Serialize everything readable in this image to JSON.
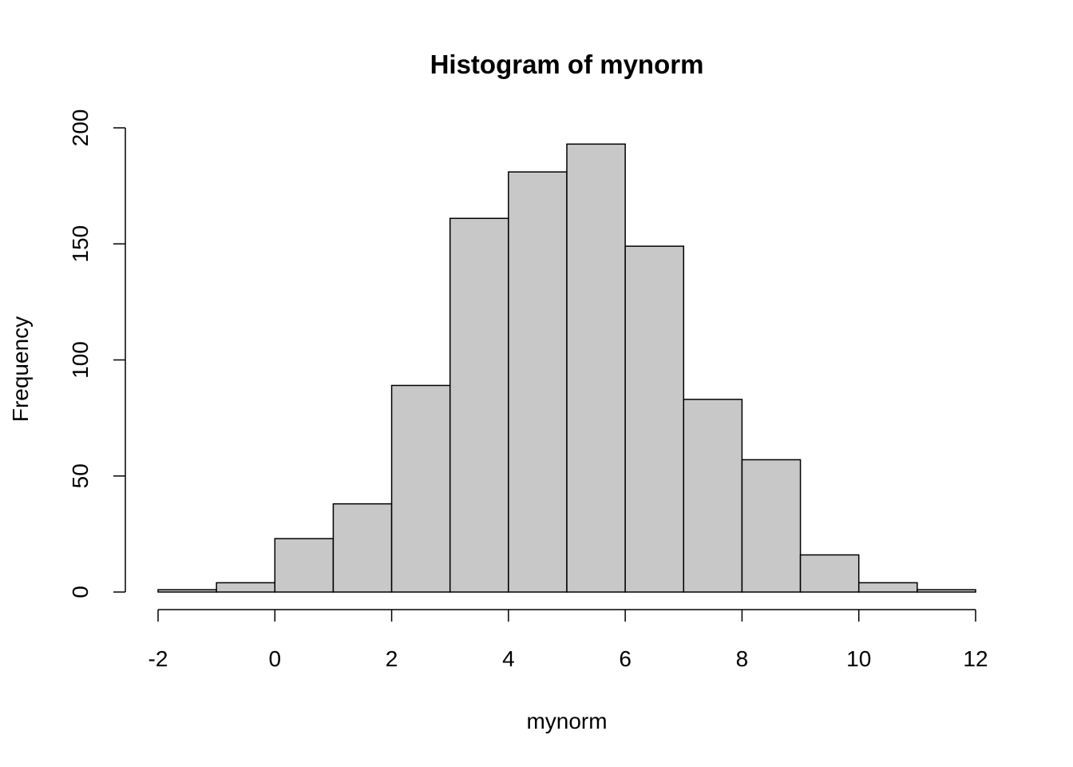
{
  "chart_data": {
    "type": "histogram",
    "title": "Histogram of mynorm",
    "x_label": "mynorm",
    "y_label": "Frequency",
    "bins": [
      -2,
      -1,
      0,
      1,
      2,
      3,
      4,
      5,
      6,
      7,
      8,
      9,
      10,
      11,
      12
    ],
    "values": [
      1,
      4,
      23,
      38,
      89,
      161,
      181,
      193,
      149,
      83,
      57,
      16,
      4,
      1
    ],
    "color": "#c8c8c8",
    "xlim": [
      -2,
      12
    ],
    "xticks": [
      -2,
      0,
      2,
      4,
      6,
      8,
      10,
      12
    ],
    "ylim": [
      0,
      200
    ],
    "yticks": [
      0,
      50,
      100,
      150,
      200
    ]
  }
}
